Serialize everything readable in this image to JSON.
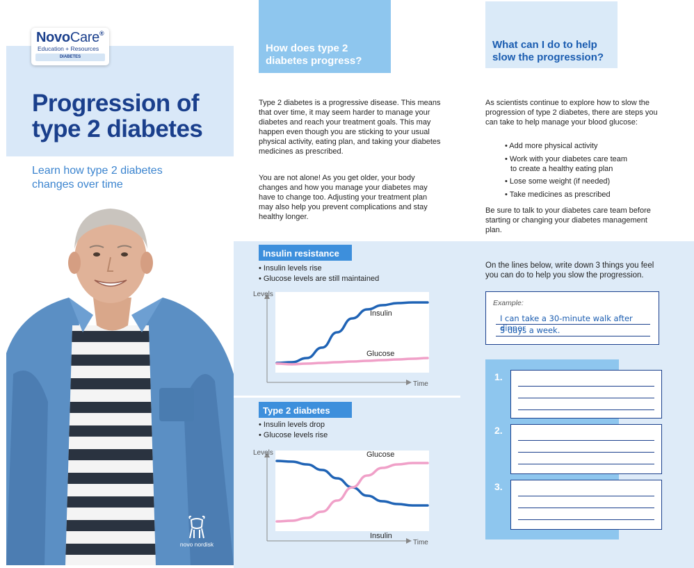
{
  "logo": {
    "brand": "Novo",
    "brand2": "Care",
    "reg": "®",
    "tagline": "Education + Resources",
    "category": "DIABETES"
  },
  "title": "Progression of type 2 diabetes",
  "subtitle": "Learn how type 2 diabetes changes over time",
  "company": "novo nordisk",
  "progress": {
    "heading": "How does type 2 diabetes progress?",
    "p1": "Type 2 diabetes is a progressive disease. This means that over time, it may seem harder to manage your diabetes and reach your treatment goals. This may happen even though you are sticking to your usual physical activity, eating plan, and taking your diabetes medicines as prescribed.",
    "p2": "You are not alone! As you get older, your body changes and how you manage your diabetes may have to change too. Adjusting your treatment plan may also help you prevent complications and stay healthy longer."
  },
  "slow": {
    "heading": "What can I do to help slow the progression?",
    "intro": "As scientists continue to explore how to slow the progression of type 2 diabetes, there are steps you can take to help manage your blood glucose:",
    "bullets": [
      "• Add more physical activity",
      "• Work with your diabetes care team",
      "to create a healthy eating plan",
      "• Lose some weight (if needed)",
      "• Take medicines as prescribed"
    ],
    "outro": "Be sure to talk to your diabetes care team before starting or changing your diabetes management plan."
  },
  "worksheet": {
    "instruction": "On the lines below, write down 3 things you feel you can do to help you slow the progression.",
    "example_label": "Example:",
    "example_line1": "I can take a 30-minute walk after dinner",
    "example_line2": "5 days a week.",
    "numbers": [
      "1.",
      "2.",
      "3."
    ]
  },
  "colors": {
    "navy": "#1a3f8c",
    "accent": "#3d8fdc",
    "light": "#8ec6ee",
    "pale": "#deebf8",
    "insulin": "#1f63b5",
    "glucose": "#f0a0c8"
  },
  "chart_data": [
    {
      "type": "line",
      "title": "Insulin resistance",
      "notes": [
        "• Insulin levels rise",
        "• Glucose levels are still maintained"
      ],
      "ylabel": "Levels",
      "xlabel": "Time",
      "ylim": [
        0,
        1
      ],
      "x": [
        0,
        0.1,
        0.2,
        0.3,
        0.4,
        0.5,
        0.6,
        0.7,
        0.8,
        0.9,
        1.0
      ],
      "series": [
        {
          "name": "Insulin",
          "values": [
            0.08,
            0.09,
            0.15,
            0.3,
            0.52,
            0.72,
            0.85,
            0.91,
            0.94,
            0.95,
            0.95
          ]
        },
        {
          "name": "Glucose",
          "values": [
            0.07,
            0.06,
            0.07,
            0.08,
            0.09,
            0.1,
            0.11,
            0.12,
            0.13,
            0.14,
            0.15
          ]
        }
      ]
    },
    {
      "type": "line",
      "title": "Type 2 diabetes",
      "notes": [
        "• Insulin levels drop",
        "• Glucose levels rise"
      ],
      "ylabel": "Levels",
      "xlabel": "Time",
      "ylim": [
        0,
        1
      ],
      "x": [
        0,
        0.1,
        0.2,
        0.3,
        0.4,
        0.5,
        0.6,
        0.7,
        0.8,
        0.9,
        1.0
      ],
      "series": [
        {
          "name": "Insulin",
          "values": [
            0.95,
            0.94,
            0.9,
            0.82,
            0.7,
            0.57,
            0.45,
            0.37,
            0.33,
            0.31,
            0.31
          ]
        },
        {
          "name": "Glucose",
          "values": [
            0.08,
            0.09,
            0.13,
            0.22,
            0.38,
            0.57,
            0.74,
            0.85,
            0.9,
            0.92,
            0.92
          ]
        }
      ]
    }
  ]
}
